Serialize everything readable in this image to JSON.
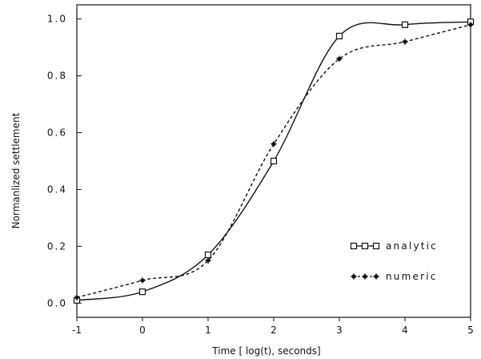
{
  "chart_data": {
    "type": "line",
    "title": "",
    "xlabel": "Time [ log(t), seconds]",
    "ylabel": "Normanlized settlement",
    "xlim": [
      -1,
      5
    ],
    "ylim": [
      -0.05,
      1.05
    ],
    "x_ticks": [
      -1,
      0,
      1,
      2,
      3,
      4,
      5
    ],
    "x_tick_labels": [
      "-1",
      "0",
      "1",
      "2",
      "3",
      "4",
      "5"
    ],
    "y_ticks": [
      0.0,
      0.2,
      0.4,
      0.6,
      0.8,
      1.0
    ],
    "y_tick_labels": [
      "0.0",
      "0.2",
      "0.4",
      "0.6",
      "0.8",
      "1.0"
    ],
    "grid": false,
    "legend_position": "lower-right",
    "series": [
      {
        "name": "analytic",
        "legend_label": "analytic",
        "marker": "square",
        "line_style": "solid",
        "color": "#111111",
        "x": [
          -1,
          0,
          1,
          2,
          3,
          4,
          5
        ],
        "y": [
          0.01,
          0.04,
          0.17,
          0.5,
          0.94,
          0.98,
          0.99
        ]
      },
      {
        "name": "numeric",
        "legend_label": "numeric",
        "marker": "star",
        "line_style": "dashed",
        "color": "#111111",
        "x": [
          -1,
          0,
          1,
          2,
          3,
          4,
          5
        ],
        "y": [
          0.02,
          0.08,
          0.15,
          0.56,
          0.86,
          0.92,
          0.98
        ]
      }
    ]
  }
}
